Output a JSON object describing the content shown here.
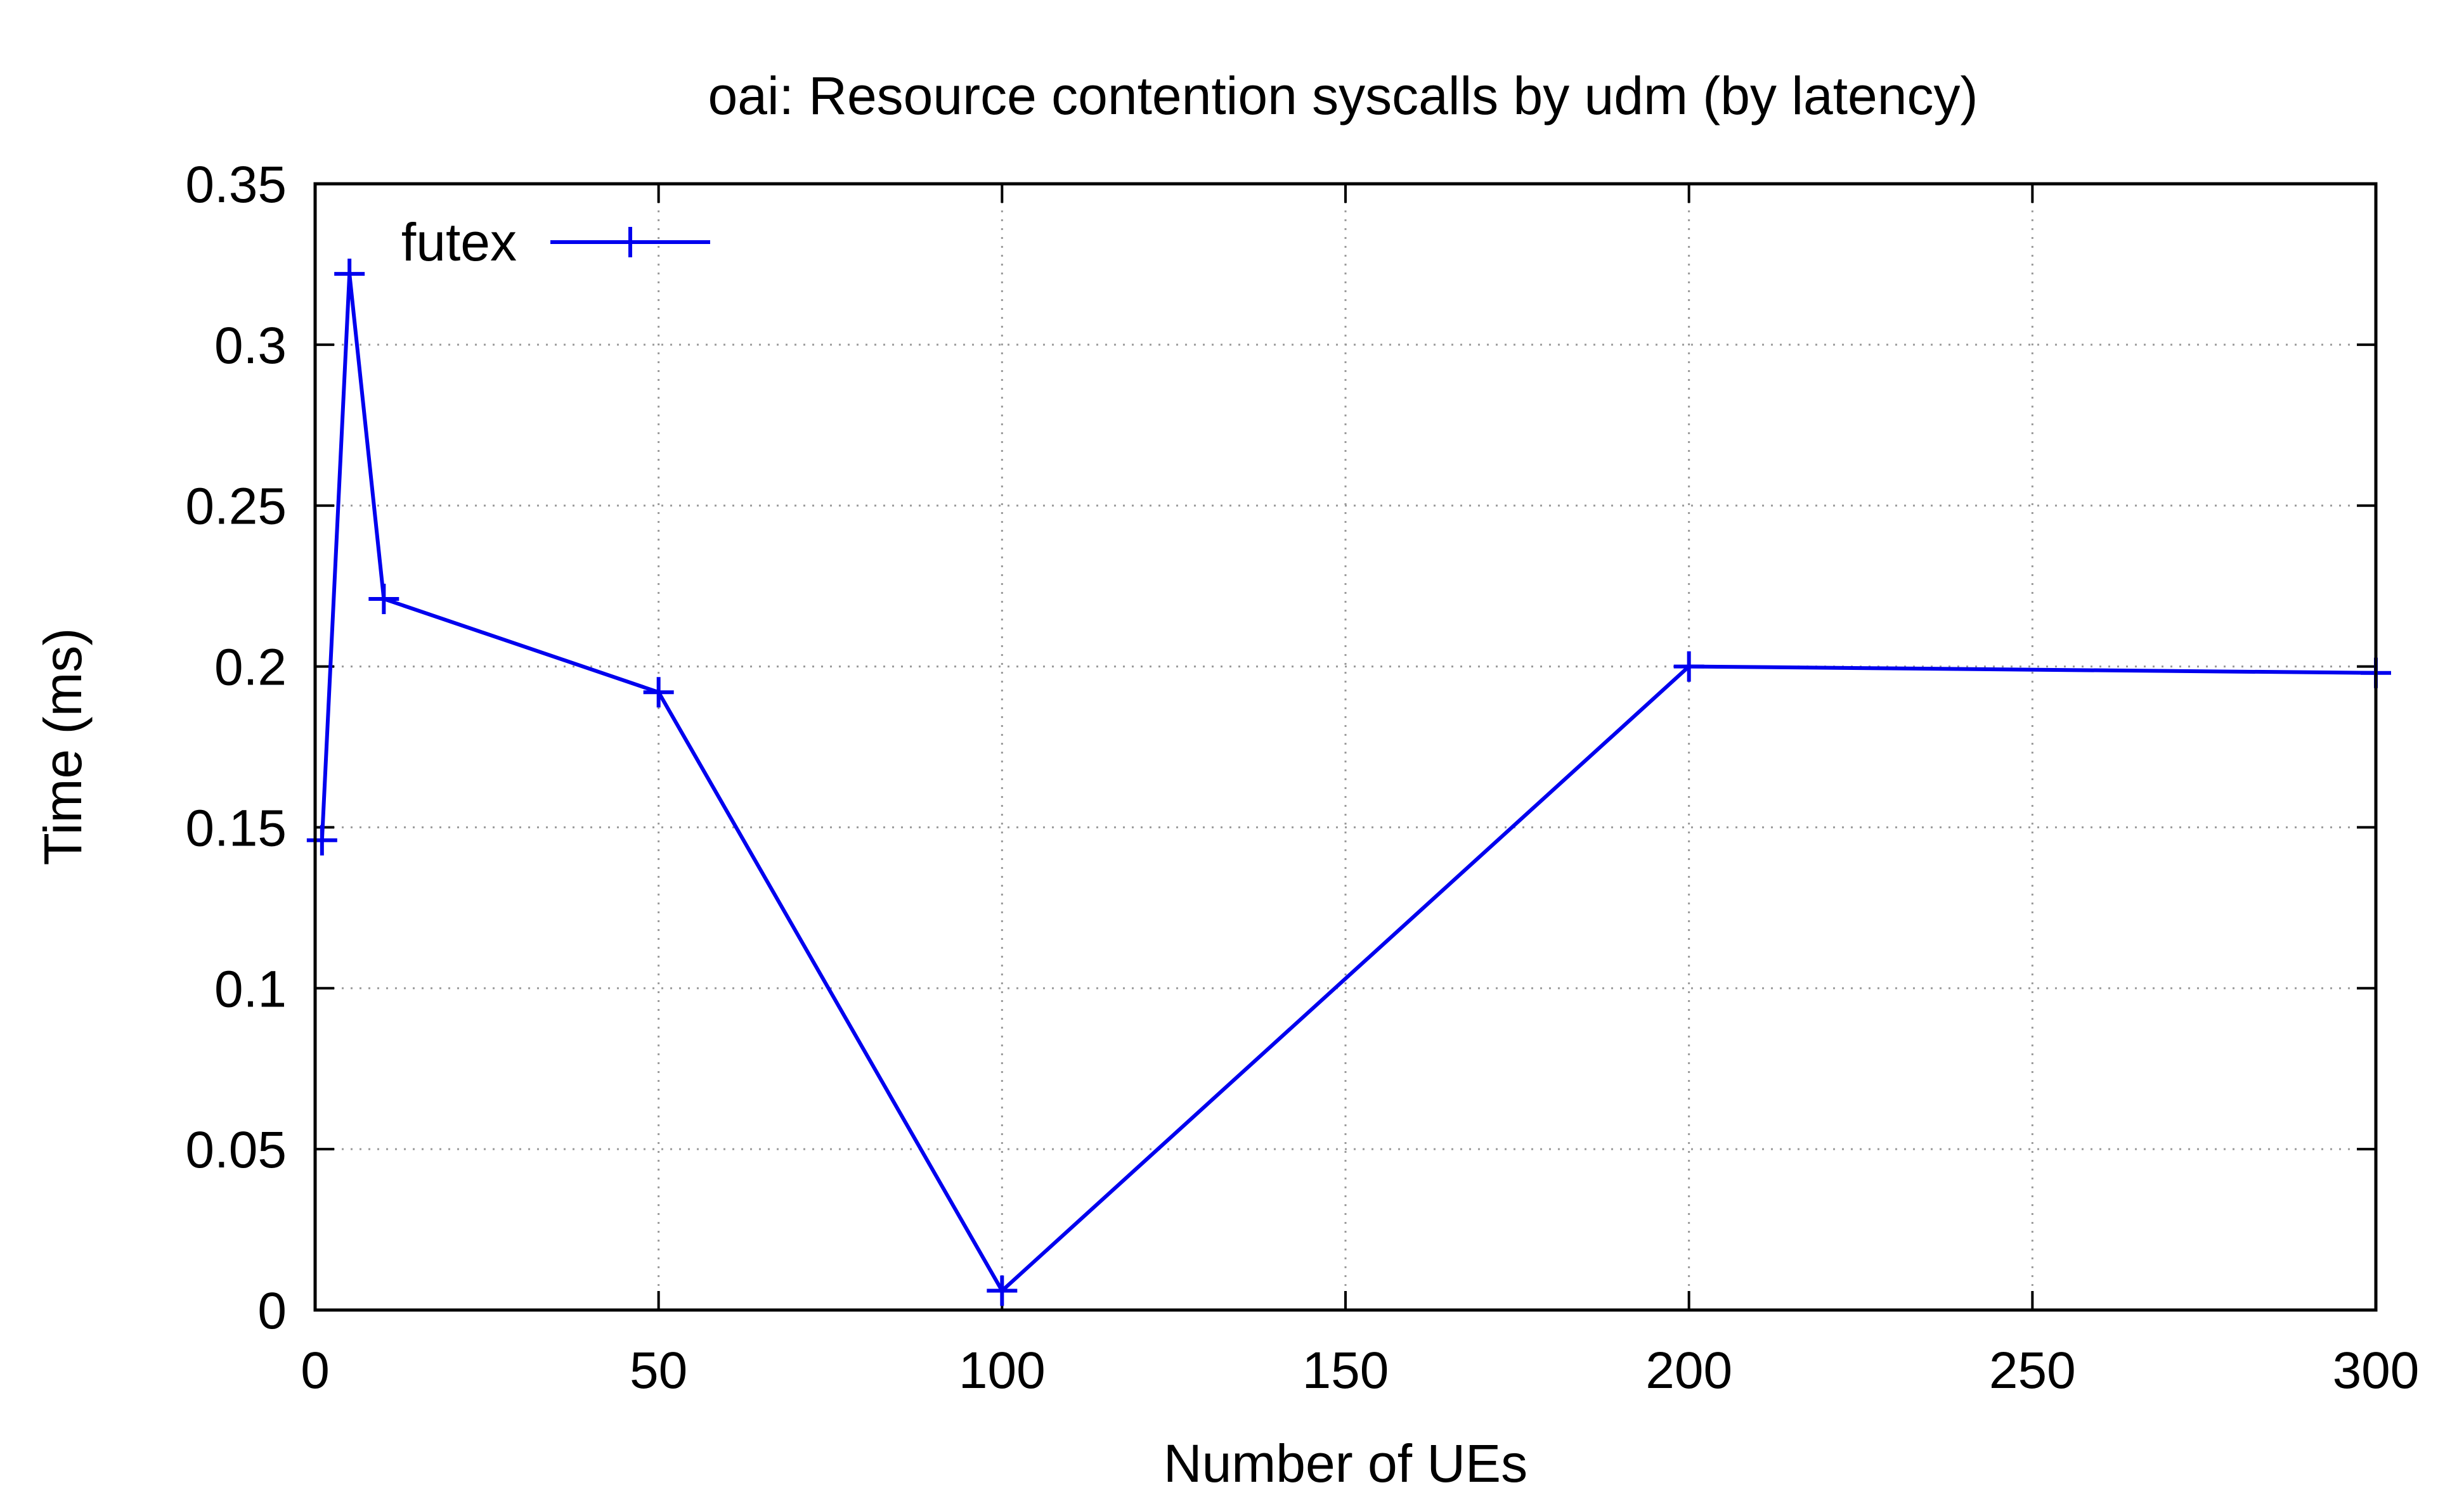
{
  "chart_data": {
    "type": "line",
    "title": "oai: Resource contention syscalls by udm (by latency)",
    "xlabel": "Number of UEs",
    "ylabel": "Time (ms)",
    "xlim": [
      0,
      300
    ],
    "ylim": [
      0,
      0.35
    ],
    "xticks": [
      0,
      50,
      100,
      150,
      200,
      250,
      300
    ],
    "yticks": [
      0,
      0.05,
      0.1,
      0.15,
      0.2,
      0.25,
      0.3,
      0.35
    ],
    "grid": true,
    "legend_position": "top-left",
    "series": [
      {
        "name": "futex",
        "color": "#0000ee",
        "marker": "plus",
        "x": [
          1,
          5,
          10,
          50,
          100,
          200,
          300
        ],
        "y": [
          0.146,
          0.322,
          0.221,
          0.192,
          0.006,
          0.2,
          0.198
        ]
      }
    ]
  }
}
